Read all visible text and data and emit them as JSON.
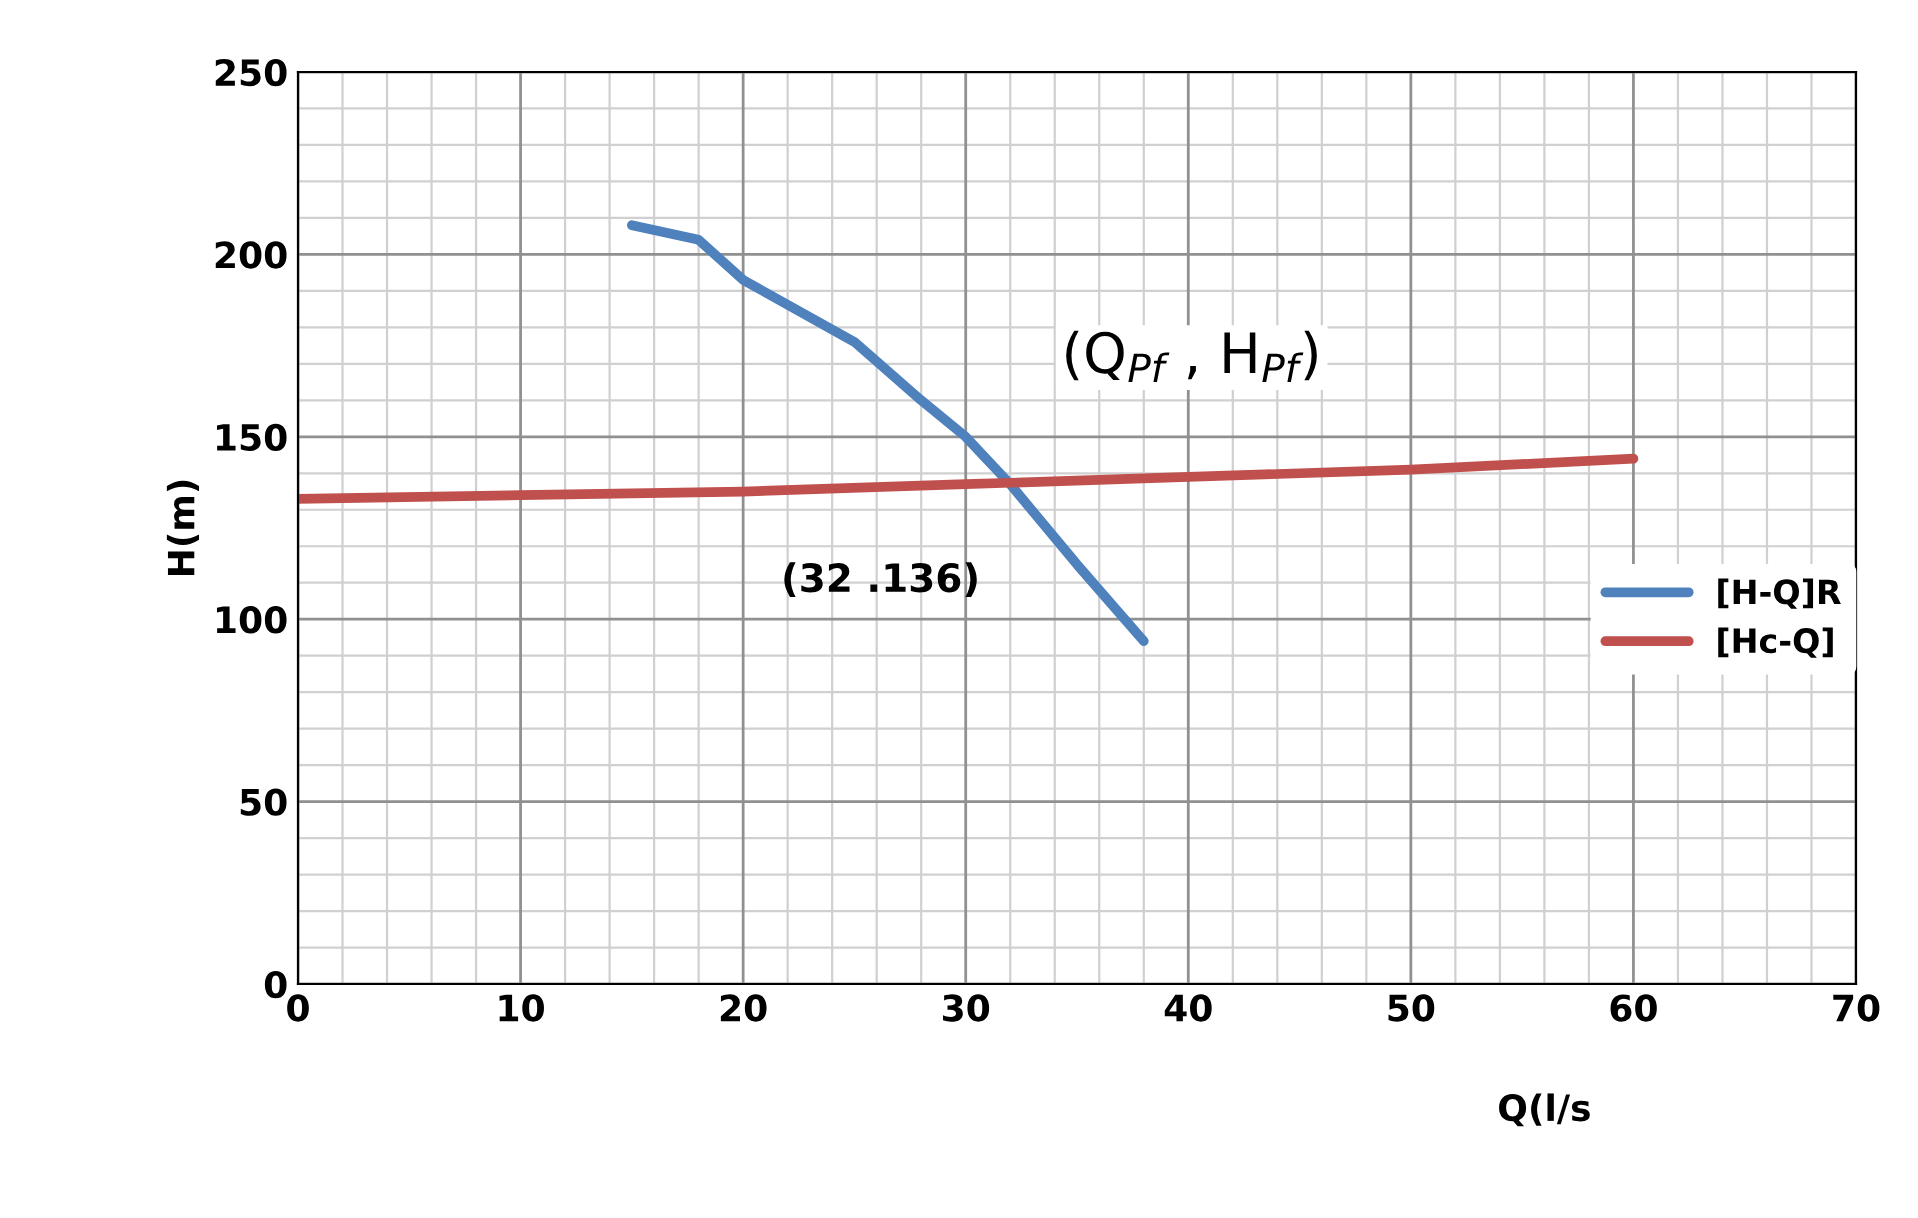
{
  "chart_data": {
    "type": "line",
    "xlabel": "Q(l/s",
    "ylabel": "H(m)",
    "xlim": [
      0,
      70
    ],
    "xticks": [
      0,
      10,
      20,
      30,
      40,
      50,
      60,
      70
    ],
    "ylim": [
      0,
      250
    ],
    "yticks": [
      0,
      50,
      100,
      150,
      200,
      250
    ],
    "grid": true,
    "legend": "right",
    "marker": "none",
    "line_style": "solid",
    "series": [
      {
        "name": "[H-Q]R",
        "color": "#4f81bd",
        "x": [
          15,
          18,
          20,
          25,
          28,
          30,
          32,
          35,
          38
        ],
        "values": [
          208,
          204,
          193,
          176,
          160,
          150,
          137,
          115,
          94
        ]
      },
      {
        "name": "[Hc-Q]",
        "color": "#c0504d",
        "x": [
          0,
          10,
          20,
          30,
          40,
          50,
          60
        ],
        "values": [
          133,
          134,
          135,
          137,
          139,
          141,
          144
        ]
      }
    ],
    "annotations": [
      "(32 .136)",
      "(Q$_{Pf}$ , H$_{Pf}$)"
    ]
  }
}
